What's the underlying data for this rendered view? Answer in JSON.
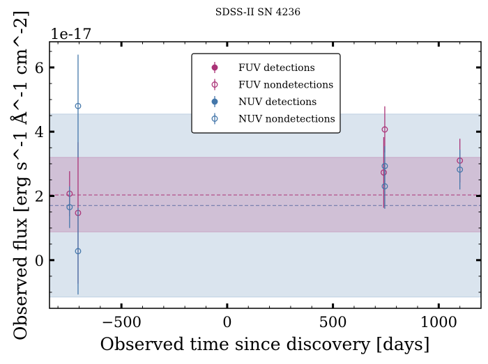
{
  "chart_data": {
    "type": "scatter",
    "title": "SDSS-II SN 4236",
    "xlabel": "Observed time since discovery [days]",
    "ylabel": "Observed flux [erg s^-1 Å^-1 cm^-2]",
    "y_offset_label": "1e-17",
    "y_scale_factor": 1e-17,
    "xlim": [
      -840,
      1200
    ],
    "ylim": [
      -1.5,
      6.8
    ],
    "x_ticks": [
      -500,
      0,
      500,
      1000
    ],
    "x_tick_labels": [
      "−500",
      "0",
      "500",
      "1000"
    ],
    "y_ticks": [
      0,
      2,
      4,
      6
    ],
    "y_tick_labels": [
      "0",
      "2",
      "4",
      "6"
    ],
    "grid": false,
    "legend_position": "top-center",
    "bands": [
      {
        "name": "NUV",
        "mean": 1.7,
        "lower": -1.15,
        "upper": 4.55,
        "color": "#4477aa"
      },
      {
        "name": "FUV",
        "mean": 2.03,
        "lower": 0.88,
        "upper": 3.2,
        "color": "#aa3377"
      }
    ],
    "series": [
      {
        "name": "FUV detections",
        "color": "#aa3377",
        "marker": "filled",
        "points": []
      },
      {
        "name": "FUV nondetections",
        "color": "#aa3377",
        "marker": "open",
        "points": [
          {
            "x": -745,
            "y": 2.07,
            "err": 0.7
          },
          {
            "x": -705,
            "y": 1.47,
            "err": 2.2
          },
          {
            "x": 740,
            "y": 2.73,
            "err": 1.1
          },
          {
            "x": 745,
            "y": 4.07,
            "err": 0.72
          },
          {
            "x": 1100,
            "y": 3.1,
            "err": 0.68
          }
        ]
      },
      {
        "name": "NUV detections",
        "color": "#4477aa",
        "marker": "filled",
        "points": []
      },
      {
        "name": "NUV nondetections",
        "color": "#4477aa",
        "marker": "open",
        "points": [
          {
            "x": -745,
            "y": 1.65,
            "err": 0.65
          },
          {
            "x": -705,
            "y": 0.28,
            "err": 1.35
          },
          {
            "x": -705,
            "y": 4.8,
            "err": 1.6
          },
          {
            "x": 745,
            "y": 2.3,
            "err": 0.7
          },
          {
            "x": 745,
            "y": 2.93,
            "err": 0.62
          },
          {
            "x": 1100,
            "y": 2.82,
            "err": 0.62
          }
        ]
      }
    ]
  }
}
